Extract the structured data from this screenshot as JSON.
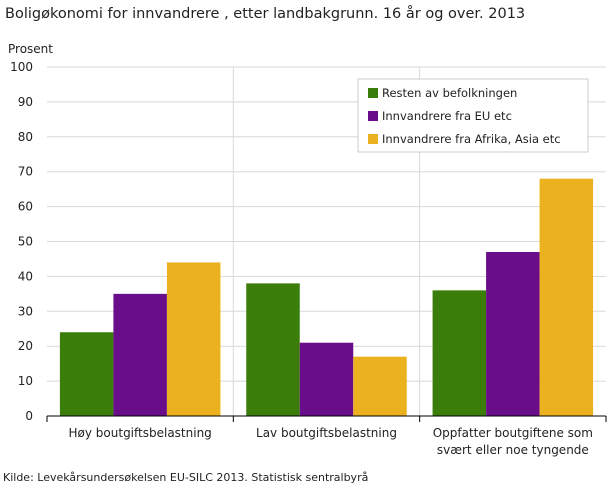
{
  "chart_data": {
    "type": "bar",
    "title": "Boligøkonomi for innvandrere , etter landbakgrunn. 16 år og over. 2013",
    "ylabel": "Prosent",
    "xlabel": "",
    "ylim": [
      0,
      100
    ],
    "yticks": [
      0,
      10,
      20,
      30,
      40,
      50,
      60,
      70,
      80,
      90,
      100
    ],
    "categories": [
      [
        "Høy boutgiftsbelastning"
      ],
      [
        "Lav boutgiftsbelastning"
      ],
      [
        "Oppfatter boutgiftene som",
        "svært eller noe tyngende"
      ]
    ],
    "series": [
      {
        "name": "Resten av befolkningen",
        "color": "#3a7d0b",
        "values": [
          24,
          38,
          36
        ]
      },
      {
        "name": "Innvandrere fra EU etc",
        "color": "#6a0d8a",
        "values": [
          35,
          21,
          47
        ]
      },
      {
        "name": "Innvandrere fra Afrika, Asia etc",
        "color": "#ebb11e",
        "values": [
          44,
          17,
          68
        ]
      }
    ],
    "grid": "horizontal",
    "legend_position": "top-right"
  },
  "footer": {
    "source": "Kilde: Levekårsundersøkelsen EU-SILC 2013. Statistisk sentralbyrå"
  }
}
